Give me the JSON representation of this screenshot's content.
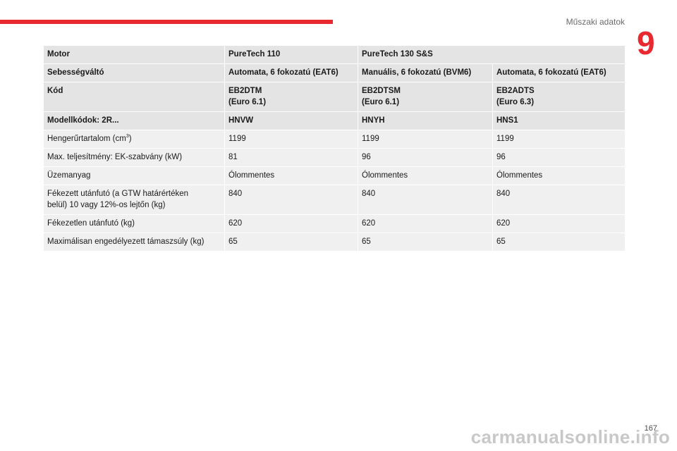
{
  "header": {
    "section_title": "Műszaki adatok",
    "chapter_number": "9",
    "accent_color": "#e8292f"
  },
  "table": {
    "header_rows": [
      [
        "Motor",
        "PureTech 110",
        "PureTech 130 S&S",
        ""
      ],
      [
        "Sebességváltó",
        "Automata, 6 fokozatú (EAT6)",
        "Manuális, 6 fokozatú (BVM6)",
        "Automata, 6 fokozatú (EAT6)"
      ],
      [
        [
          "Kód"
        ],
        [
          "EB2DTM",
          "(Euro 6.1)"
        ],
        [
          "EB2DTSM",
          "(Euro 6.1)"
        ],
        [
          "EB2ADTS",
          "(Euro 6.3)"
        ]
      ],
      [
        "Modellkódok: 2R...",
        "HNVW",
        "HNYH",
        "HNS1"
      ]
    ],
    "rows": [
      {
        "label": "Hengerűrtartalom (cm",
        "label_sup": "3",
        "label_suffix": ")",
        "values": [
          "1199",
          "1199",
          "1199"
        ]
      },
      {
        "label": "Max. teljesítmény: EK-szabvány (kW)",
        "values": [
          "81",
          "96",
          "96"
        ]
      },
      {
        "label": "Üzemanyag",
        "values": [
          "Ólommentes",
          "Ólommentes",
          "Ólommentes"
        ]
      },
      {
        "label_lines": [
          "Fékezett utánfutó (a GTW határértéken",
          "belül) 10 vagy 12%-os lejtőn (kg)"
        ],
        "values": [
          "840",
          "840",
          "840"
        ]
      },
      {
        "label": "Fékezetlen utánfutó (kg)",
        "values": [
          "620",
          "620",
          "620"
        ]
      },
      {
        "label": "Maximálisan engedélyezett támaszsúly (kg)",
        "values": [
          "65",
          "65",
          "65"
        ]
      }
    ]
  },
  "footer": {
    "page_number": "167",
    "watermark": "carmanualsonline.info"
  }
}
